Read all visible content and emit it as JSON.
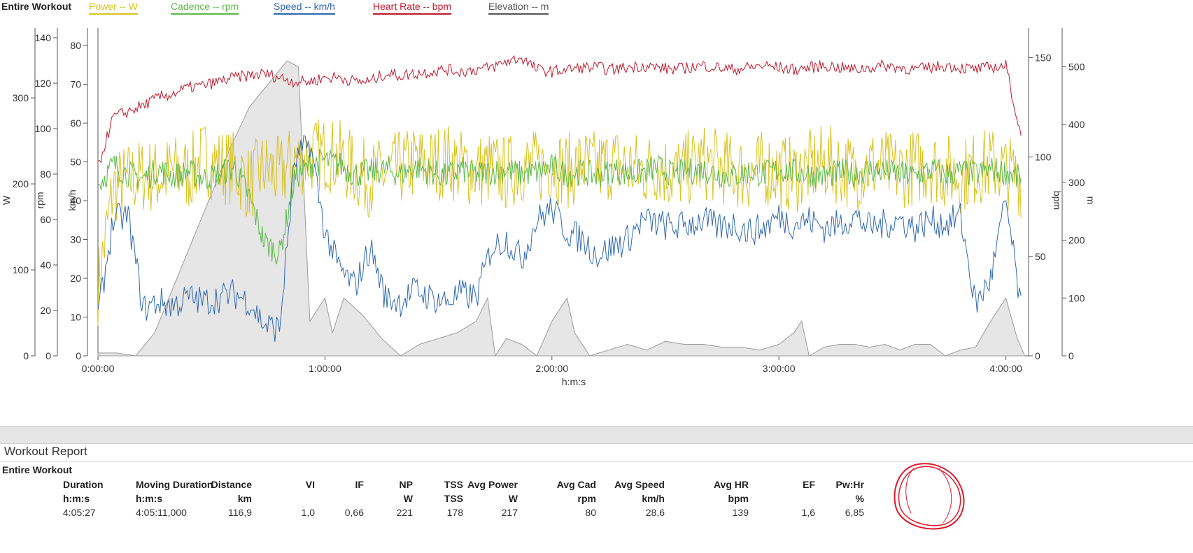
{
  "legend": {
    "title": "Entire Workout",
    "items": [
      {
        "label": "Power  -- W",
        "color": "#d9c21f"
      },
      {
        "label": "Cadence  -- rpm",
        "color": "#5cb84a"
      },
      {
        "label": "Speed  -- km/h",
        "color": "#2f68b0"
      },
      {
        "label": "Heart Rate  -- bpm",
        "color": "#c0182a"
      },
      {
        "label": "Elevation  -- m",
        "color": "#555555"
      }
    ]
  },
  "axes": {
    "power": {
      "label": "W",
      "ticks": [
        "0",
        "100",
        "200",
        "300"
      ]
    },
    "cadence": {
      "label": "rpm",
      "ticks": [
        "0",
        "20",
        "40",
        "60",
        "80",
        "100",
        "120",
        "140"
      ]
    },
    "speed": {
      "label": "km/h",
      "ticks": [
        "0",
        "10",
        "20",
        "30",
        "40",
        "50",
        "60",
        "70",
        "80"
      ]
    },
    "heart_rate": {
      "label": "bpm",
      "ticks": [
        "0",
        "50",
        "100",
        "150"
      ]
    },
    "elevation": {
      "label": "m",
      "ticks": [
        "0",
        "100",
        "200",
        "300",
        "400",
        "500"
      ]
    },
    "time": {
      "label": "h:m:s",
      "ticks": [
        "0:00:00",
        "1:00:00",
        "2:00:00",
        "3:00:00",
        "4:00:00"
      ]
    }
  },
  "chart_data": {
    "type": "line",
    "title": "Entire Workout",
    "xlabel": "h:m:s",
    "xlim_minutes": [
      0,
      246
    ],
    "series": [
      {
        "name": "Power",
        "unit": "W",
        "axis": "power",
        "ylim": [
          0,
          370
        ],
        "color": "#d9c21f",
        "x": [
          0,
          4,
          8,
          12,
          16,
          20,
          24,
          28,
          32,
          36,
          40,
          44,
          48,
          52,
          56,
          60,
          64,
          68,
          72,
          76,
          80,
          84,
          88,
          92,
          96,
          100,
          104,
          108,
          112,
          116,
          120,
          124,
          128,
          132,
          136,
          140,
          144,
          148,
          152,
          156,
          160,
          164,
          168,
          172,
          176,
          180,
          184,
          188,
          192,
          196,
          200,
          204,
          208,
          212,
          216,
          220,
          224,
          228,
          232,
          236,
          240,
          244
        ],
        "values": [
          80,
          195,
          205,
          210,
          208,
          215,
          212,
          230,
          222,
          218,
          200,
          218,
          210,
          228,
          232,
          235,
          230,
          215,
          205,
          212,
          218,
          225,
          222,
          228,
          220,
          215,
          218,
          212,
          222,
          218,
          225,
          215,
          222,
          218,
          225,
          220,
          215,
          222,
          210,
          218,
          225,
          220,
          215,
          212,
          218,
          215,
          210,
          218,
          225,
          220,
          212,
          222,
          218,
          215,
          220,
          222,
          215,
          210,
          218,
          222,
          215,
          205
        ]
      },
      {
        "name": "Cadence",
        "unit": "rpm",
        "axis": "cadence",
        "ylim": [
          0,
          140
        ],
        "color": "#5cb84a",
        "x": [
          0,
          4,
          8,
          12,
          16,
          20,
          24,
          28,
          32,
          36,
          40,
          44,
          48,
          52,
          56,
          60,
          64,
          68,
          72,
          76,
          80,
          84,
          88,
          92,
          96,
          100,
          104,
          108,
          112,
          116,
          120,
          124,
          128,
          132,
          136,
          140,
          144,
          148,
          152,
          156,
          160,
          164,
          168,
          172,
          176,
          180,
          184,
          188,
          192,
          196,
          200,
          204,
          208,
          212,
          216,
          220,
          224,
          228,
          232,
          236,
          240,
          244
        ],
        "values": [
          75,
          84,
          80,
          78,
          82,
          79,
          81,
          78,
          80,
          83,
          70,
          50,
          45,
          78,
          84,
          86,
          84,
          80,
          81,
          82,
          80,
          83,
          81,
          79,
          82,
          80,
          81,
          82,
          80,
          81,
          83,
          80,
          81,
          79,
          82,
          80,
          81,
          83,
          80,
          81,
          82,
          80,
          79,
          81,
          80,
          82,
          81,
          80,
          79,
          81,
          80,
          82,
          81,
          80,
          79,
          82,
          80,
          81,
          80,
          82,
          81,
          78
        ]
      },
      {
        "name": "Speed",
        "unit": "km/h",
        "axis": "speed",
        "ylim": [
          0,
          82
        ],
        "color": "#2f68b0",
        "x": [
          0,
          4,
          8,
          12,
          16,
          20,
          24,
          28,
          32,
          36,
          40,
          44,
          48,
          52,
          56,
          60,
          64,
          68,
          72,
          76,
          80,
          84,
          88,
          92,
          96,
          100,
          104,
          108,
          112,
          116,
          120,
          124,
          128,
          132,
          136,
          140,
          144,
          148,
          152,
          156,
          160,
          164,
          168,
          172,
          176,
          180,
          184,
          188,
          192,
          196,
          200,
          204,
          208,
          212,
          216,
          220,
          224,
          228,
          232,
          236,
          240,
          244
        ],
        "values": [
          10,
          35,
          36,
          12,
          14,
          13,
          15,
          14,
          15,
          16,
          14,
          8,
          7,
          50,
          55,
          32,
          22,
          18,
          28,
          15,
          14,
          17,
          15,
          14,
          16,
          15,
          28,
          30,
          25,
          35,
          38,
          32,
          30,
          26,
          28,
          30,
          35,
          34,
          33,
          34,
          35,
          33,
          34,
          32,
          33,
          36,
          34,
          35,
          33,
          34,
          36,
          33,
          34,
          35,
          33,
          35,
          34,
          36,
          13,
          20,
          40,
          12
        ]
      },
      {
        "name": "Heart Rate",
        "unit": "bpm",
        "axis": "heart_rate",
        "ylim": [
          0,
          160
        ],
        "color": "#c0182a",
        "x": [
          0,
          4,
          8,
          12,
          16,
          20,
          24,
          28,
          32,
          36,
          40,
          44,
          48,
          52,
          56,
          60,
          64,
          68,
          72,
          76,
          80,
          84,
          88,
          92,
          96,
          100,
          104,
          108,
          112,
          116,
          120,
          124,
          128,
          132,
          136,
          140,
          144,
          148,
          152,
          156,
          160,
          164,
          168,
          172,
          176,
          180,
          184,
          188,
          192,
          196,
          200,
          204,
          208,
          212,
          216,
          220,
          224,
          228,
          232,
          236,
          240,
          244
        ],
        "values": [
          95,
          120,
          123,
          126,
          130,
          132,
          135,
          136,
          138,
          140,
          141,
          142,
          140,
          138,
          138,
          140,
          140,
          138,
          138,
          142,
          141,
          142,
          143,
          144,
          143,
          144,
          145,
          148,
          150,
          144,
          143,
          144,
          145,
          145,
          144,
          145,
          146,
          145,
          144,
          145,
          146,
          145,
          144,
          145,
          146,
          145,
          144,
          145,
          146,
          145,
          144,
          145,
          146,
          145,
          144,
          145,
          146,
          145,
          144,
          145,
          146,
          110
        ]
      },
      {
        "name": "Elevation",
        "unit": "m",
        "axis": "elevation",
        "ylim": [
          0,
          550
        ],
        "color": "#9a9a9a",
        "x": [
          0,
          5,
          10,
          15,
          20,
          25,
          30,
          35,
          40,
          45,
          50,
          53,
          56,
          60,
          62,
          65,
          70,
          75,
          80,
          85,
          90,
          95,
          100,
          103,
          105,
          108,
          112,
          116,
          120,
          124,
          126,
          130,
          135,
          140,
          145,
          150,
          155,
          160,
          165,
          170,
          175,
          180,
          184,
          186,
          188,
          192,
          196,
          200,
          204,
          208,
          212,
          216,
          220,
          224,
          228,
          232,
          236,
          240,
          243,
          245
        ],
        "values": [
          5,
          5,
          0,
          40,
          120,
          200,
          280,
          360,
          430,
          470,
          510,
          500,
          60,
          100,
          40,
          100,
          70,
          30,
          0,
          20,
          30,
          40,
          60,
          100,
          0,
          30,
          20,
          0,
          60,
          100,
          40,
          0,
          10,
          20,
          10,
          25,
          20,
          20,
          15,
          15,
          10,
          20,
          40,
          60,
          0,
          15,
          20,
          20,
          15,
          20,
          10,
          20,
          20,
          0,
          10,
          15,
          60,
          100,
          30,
          0
        ]
      }
    ]
  },
  "report": {
    "title": "Workout Report",
    "subtitle": "Entire Workout",
    "columns": [
      {
        "header": "Duration",
        "unit": "h:m:s",
        "value": "4:05:27",
        "align": "left"
      },
      {
        "header": "Moving Duration",
        "unit": "h:m:s",
        "value": "4:05:11,000",
        "align": "left"
      },
      {
        "header": "Distance",
        "unit": "km",
        "value": "116,9",
        "align": "right"
      },
      {
        "header": "VI",
        "unit": "",
        "value": "1,0",
        "align": "right"
      },
      {
        "header": "IF",
        "unit": "",
        "value": "0,66",
        "align": "right"
      },
      {
        "header": "NP",
        "unit": "W",
        "value": "221",
        "align": "right"
      },
      {
        "header": "TSS",
        "unit": "TSS",
        "value": "178",
        "align": "right"
      },
      {
        "header": "Avg Power",
        "unit": "W",
        "value": "217",
        "align": "right"
      },
      {
        "header": "Avg Cad",
        "unit": "rpm",
        "value": "80",
        "align": "right"
      },
      {
        "header": "Avg Speed",
        "unit": "km/h",
        "value": "28,6",
        "align": "right"
      },
      {
        "header": "Avg HR",
        "unit": "bpm",
        "value": "139",
        "align": "right"
      },
      {
        "header": "EF",
        "unit": "",
        "value": "1,6",
        "align": "right"
      },
      {
        "header": "Pw:Hr",
        "unit": "%",
        "value": "6,85",
        "align": "right"
      }
    ]
  }
}
